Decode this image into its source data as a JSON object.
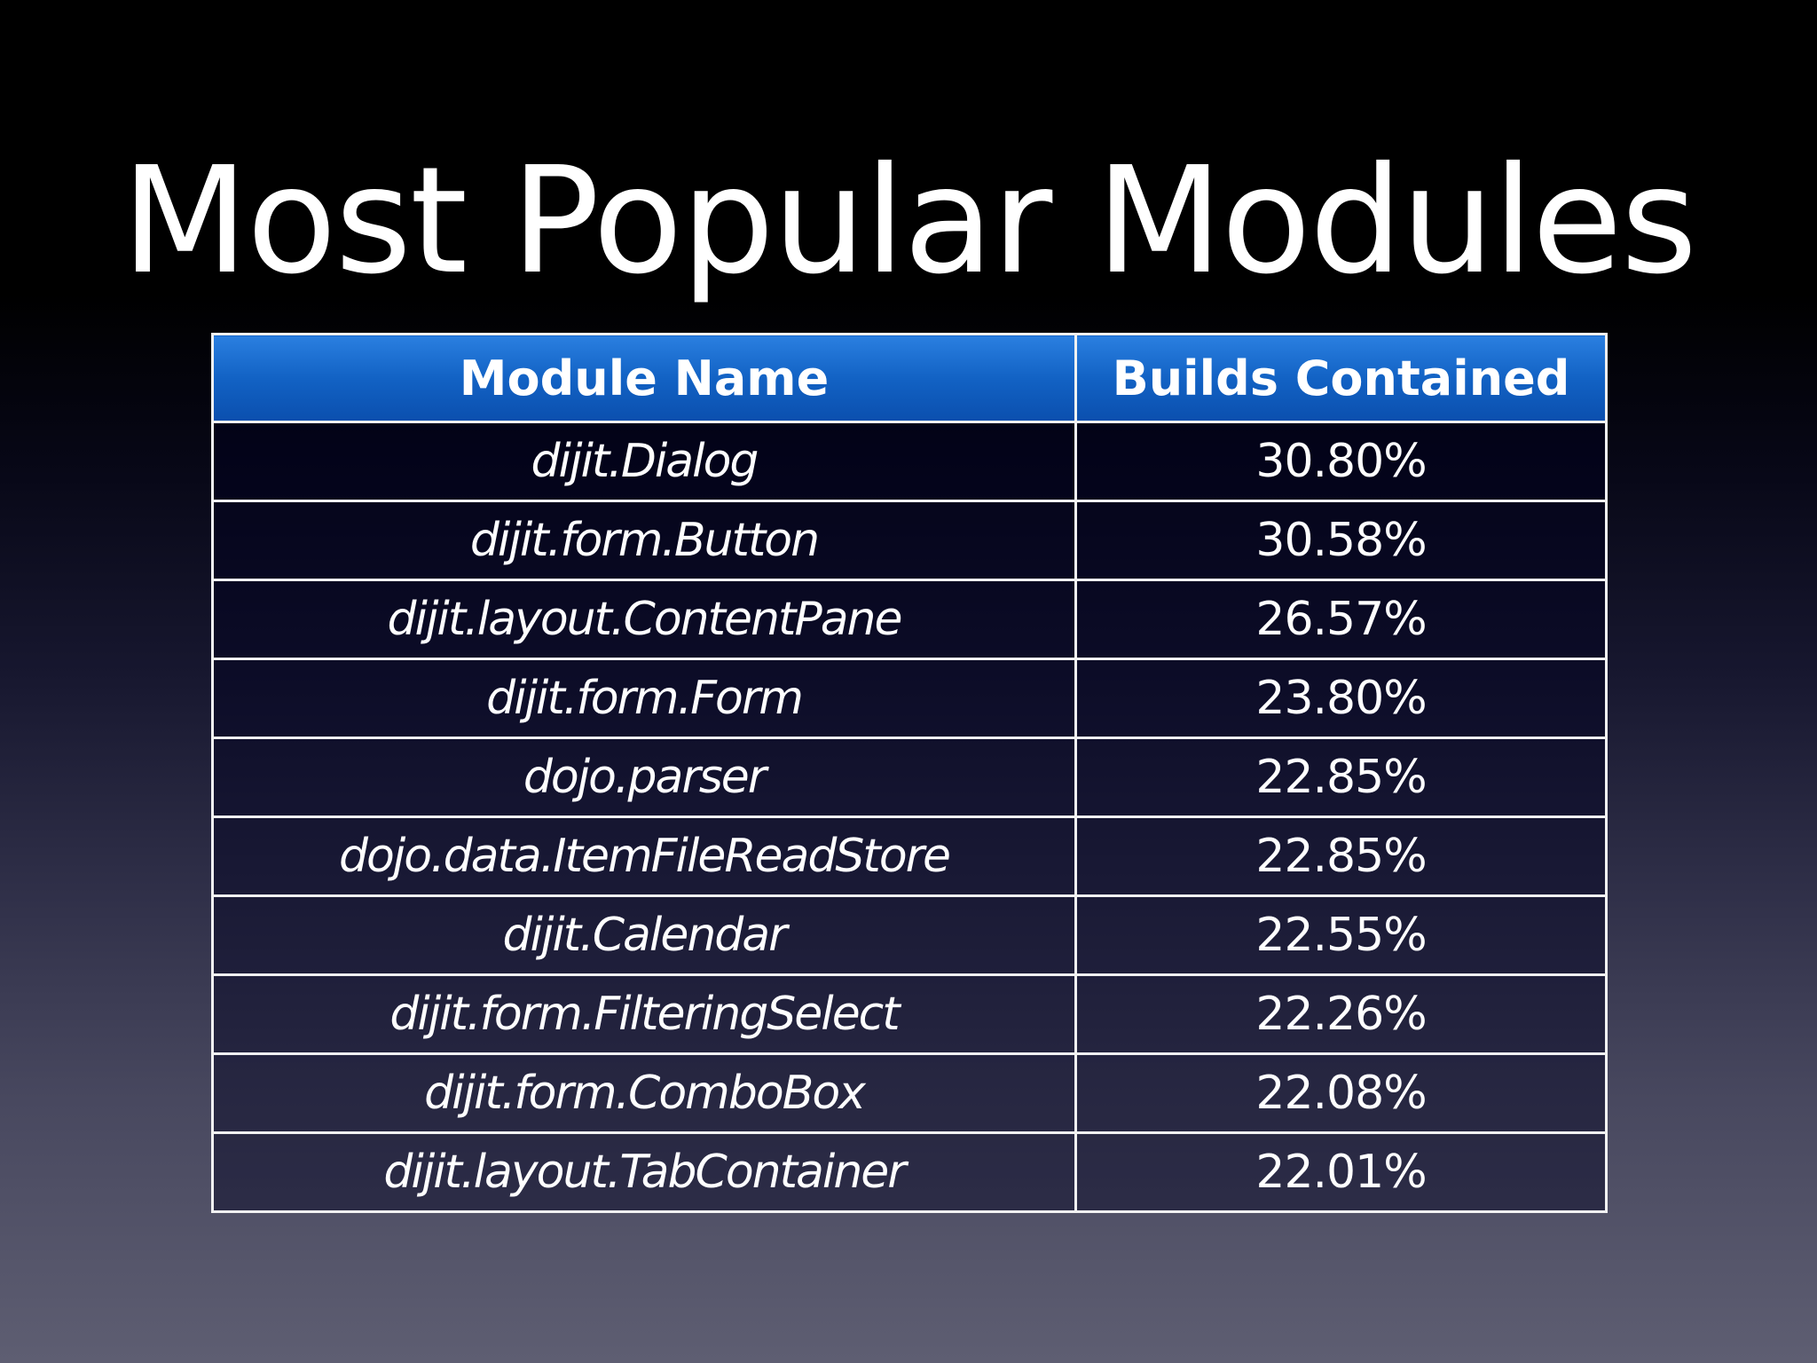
{
  "slide": {
    "title": "Most Popular Modules"
  },
  "table": {
    "headers": {
      "module_name": "Module Name",
      "builds_contained": "Builds Contained"
    },
    "rows": [
      {
        "module": "dijit.Dialog",
        "builds": "30.80%"
      },
      {
        "module": "dijit.form.Button",
        "builds": "30.58%"
      },
      {
        "module": "dijit.layout.ContentPane",
        "builds": "26.57%"
      },
      {
        "module": "dijit.form.Form",
        "builds": "23.80%"
      },
      {
        "module": "dojo.parser",
        "builds": "22.85%"
      },
      {
        "module": "dojo.data.ItemFileReadStore",
        "builds": "22.85%"
      },
      {
        "module": "dijit.Calendar",
        "builds": "22.55%"
      },
      {
        "module": "dijit.form.FilteringSelect",
        "builds": "22.26%"
      },
      {
        "module": "dijit.form.ComboBox",
        "builds": "22.08%"
      },
      {
        "module": "dijit.layout.TabContainer",
        "builds": "22.01%"
      }
    ]
  },
  "colors": {
    "header_blue": "#1262c4",
    "border": "#f2f2f2",
    "text": "#ffffff"
  }
}
